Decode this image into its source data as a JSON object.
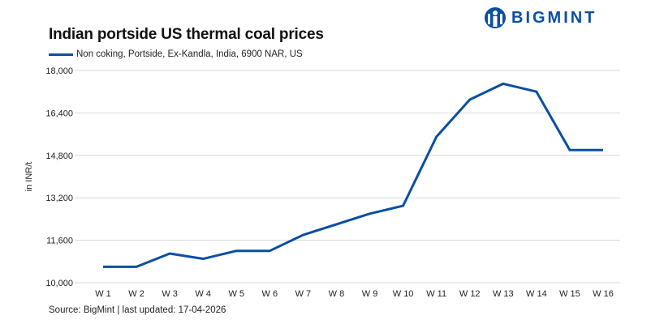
{
  "brand": {
    "logo_text": "BIGMINT",
    "color": "#0b4ea2"
  },
  "chart_data": {
    "type": "line",
    "title": "Indian portside US thermal coal prices",
    "ylabel": "in INR/t",
    "xlabel": "",
    "ylim": [
      10000,
      18000
    ],
    "yticks": [
      10000,
      11600,
      13200,
      14800,
      16400,
      18000
    ],
    "ytick_labels": [
      "10,000",
      "11,600",
      "13,200",
      "14,800",
      "16,400",
      "18,000"
    ],
    "grid": true,
    "legend_position": "top-left",
    "categories": [
      "W 1",
      "W 2",
      "W 3",
      "W 4",
      "W 5",
      "W 6",
      "W 7",
      "W 8",
      "W 9",
      "W 10",
      "W 11",
      "W 12",
      "W 13",
      "W 14",
      "W 15",
      "W 16"
    ],
    "series": [
      {
        "name": "Non coking, Portside, Ex-Kandla, India, 6900 NAR, US",
        "color": "#0b4ea2",
        "values": [
          10600,
          10600,
          11100,
          10900,
          11200,
          11200,
          11800,
          12200,
          12600,
          12900,
          15500,
          16900,
          17500,
          17200,
          15000,
          15000
        ]
      }
    ]
  },
  "source": "Source: BigMint | last updated: 17-04-2026"
}
